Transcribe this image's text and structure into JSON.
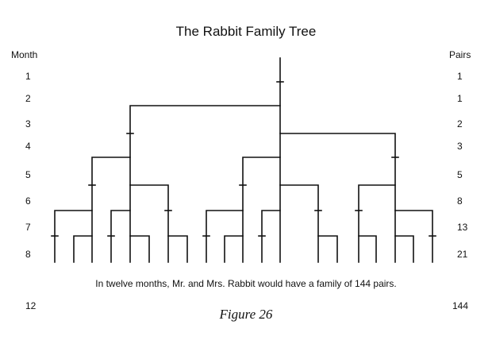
{
  "title": "The Rabbit Family Tree",
  "left_header": "Month",
  "right_header": "Pairs",
  "months": [
    "1",
    "2",
    "3",
    "4",
    "5",
    "6",
    "7",
    "8"
  ],
  "pairs": [
    "1",
    "1",
    "2",
    "3",
    "5",
    "8",
    "13",
    "21"
  ],
  "caption": "In twelve months, Mr. and Mrs. Rabbit would have a family of 144 pairs.",
  "final_month": "12",
  "final_pairs": "144",
  "figure_label": "Figure 26"
}
